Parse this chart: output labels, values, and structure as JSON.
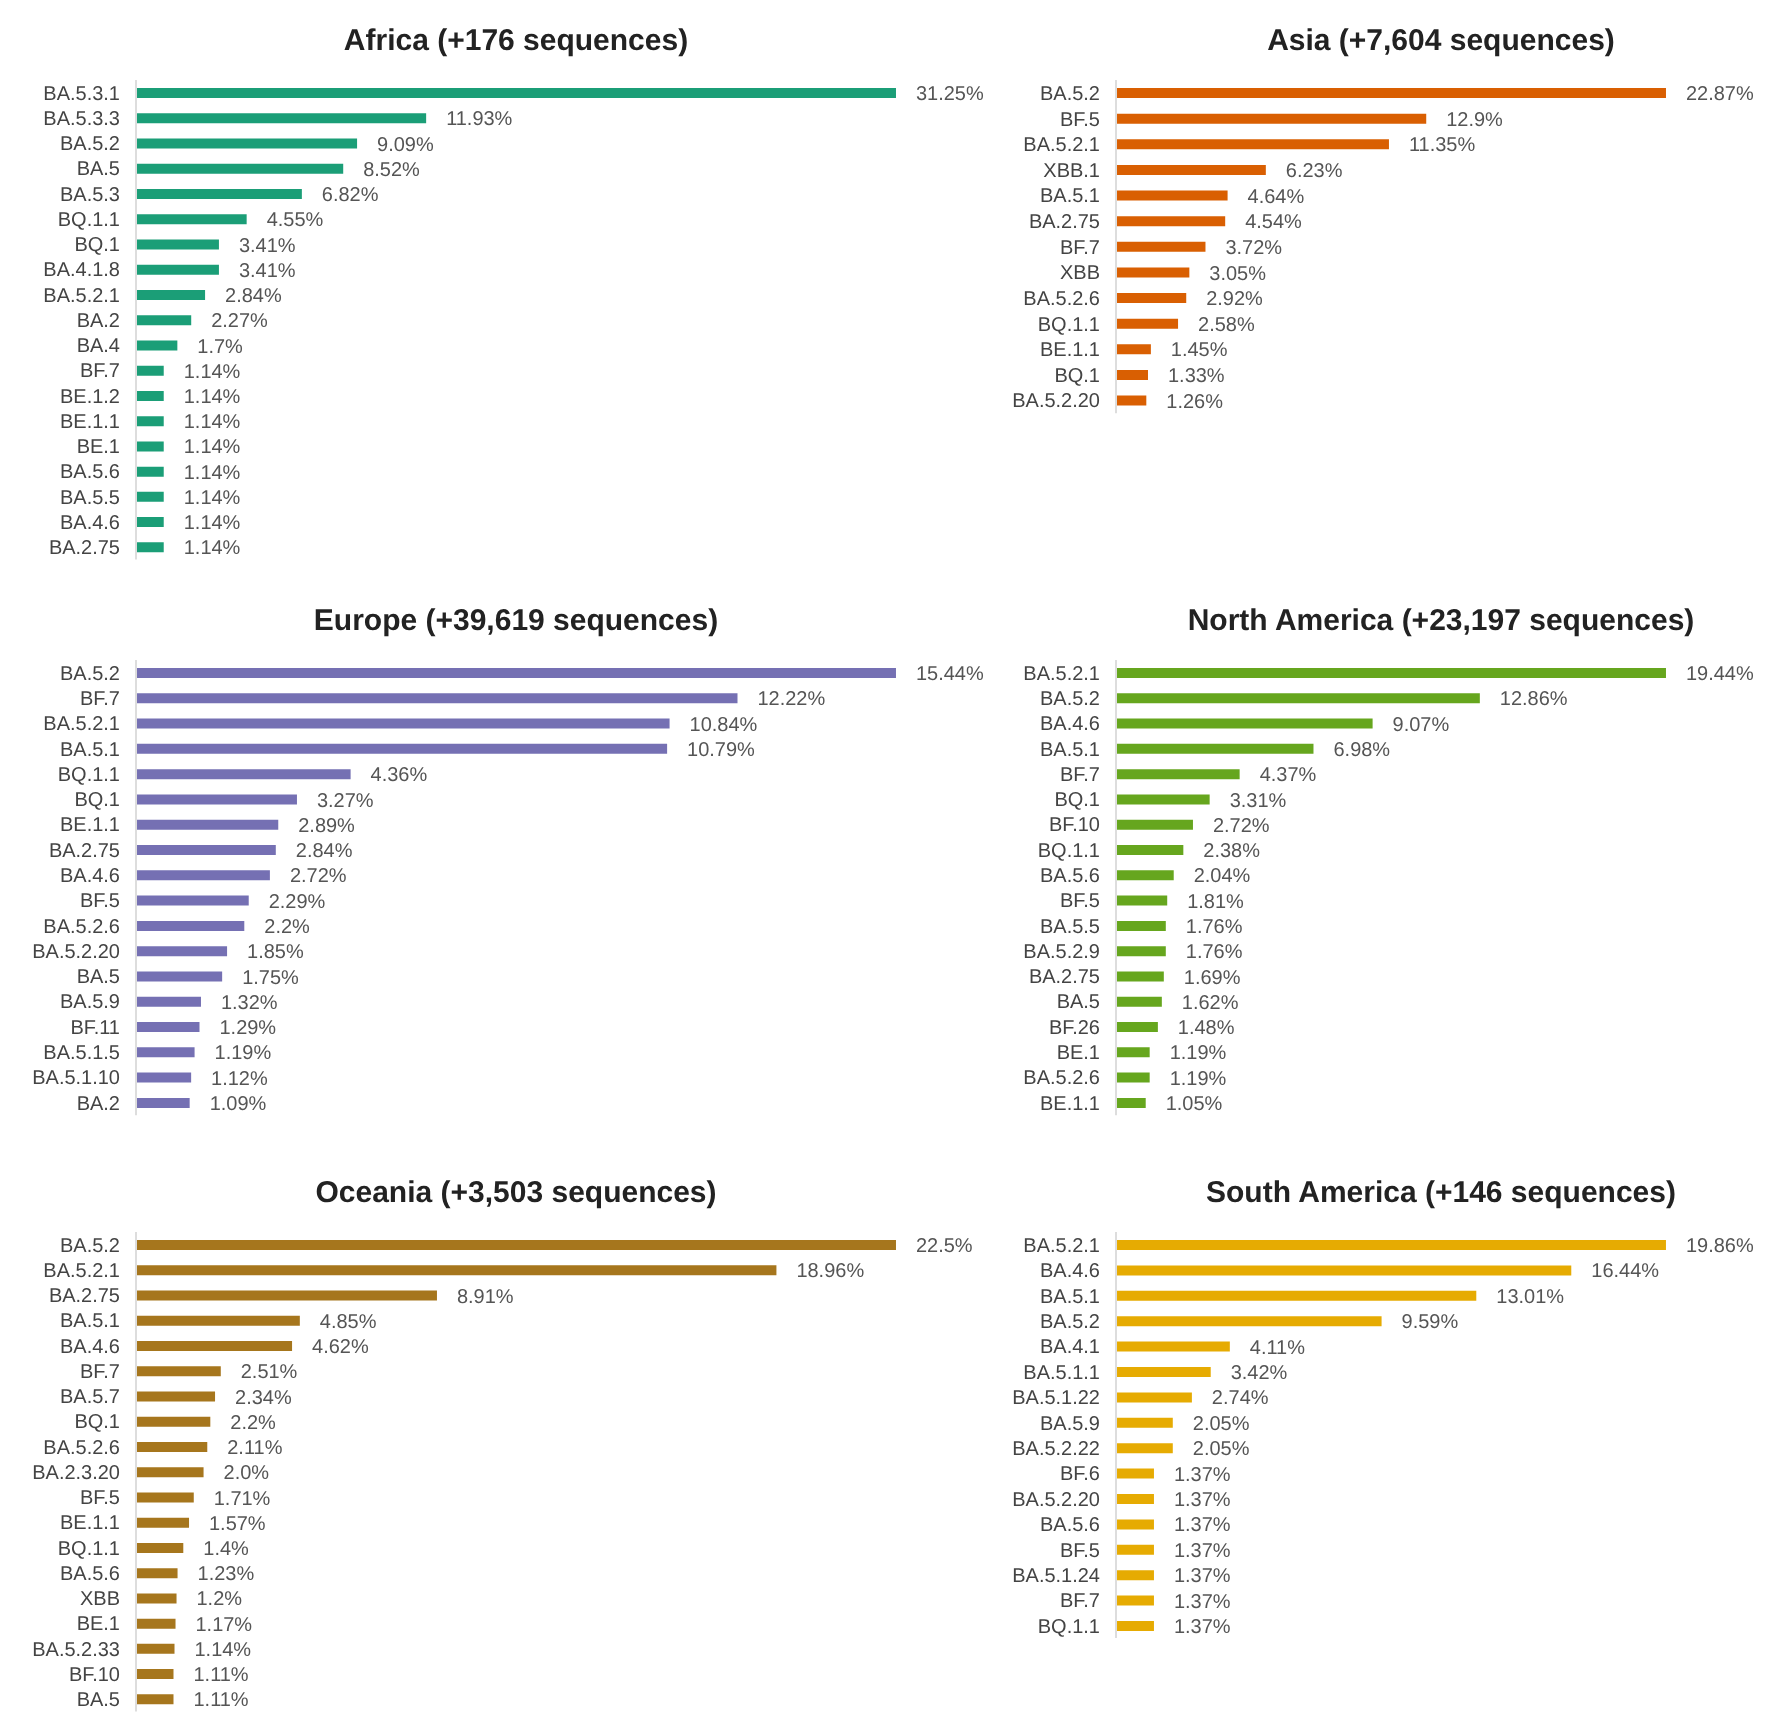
{
  "chart_data": [
    {
      "type": "bar",
      "orientation": "horizontal",
      "title": "Africa (+176 sequences)",
      "categories": [
        "BA.5.3.1",
        "BA.5.3.3",
        "BA.5.2",
        "BA.5",
        "BA.5.3",
        "BQ.1.1",
        "BQ.1",
        "BA.4.1.8",
        "BA.5.2.1",
        "BA.2",
        "BA.4",
        "BF.7",
        "BE.1.2",
        "BE.1.1",
        "BE.1",
        "BA.5.6",
        "BA.5.5",
        "BA.4.6",
        "BA.2.75"
      ],
      "color": "#1b9e77",
      "values": [
        31.25,
        11.93,
        9.09,
        8.52,
        6.82,
        4.55,
        3.41,
        3.41,
        2.84,
        2.27,
        1.7,
        1.14,
        1.14,
        1.14,
        1.14,
        1.14,
        1.14,
        1.14,
        1.14
      ],
      "value_labels": [
        "31.25%",
        "11.93%",
        "9.09%",
        "8.52%",
        "6.82%",
        "4.55%",
        "3.41%",
        "3.41%",
        "2.84%",
        "2.27%",
        "1.7%",
        "1.14%",
        "1.14%",
        "1.14%",
        "1.14%",
        "1.14%",
        "1.14%",
        "1.14%",
        "1.14%"
      ]
    },
    {
      "type": "bar",
      "orientation": "horizontal",
      "title": "Asia (+7,604 sequences)",
      "categories": [
        "BA.5.2",
        "BF.5",
        "BA.5.2.1",
        "XBB.1",
        "BA.5.1",
        "BA.2.75",
        "BF.7",
        "XBB",
        "BA.5.2.6",
        "BQ.1.1",
        "BE.1.1",
        "BQ.1",
        "BA.5.2.20"
      ],
      "color": "#d95f02",
      "values": [
        22.87,
        12.9,
        11.35,
        6.23,
        4.64,
        4.54,
        3.72,
        3.05,
        2.92,
        2.58,
        1.45,
        1.33,
        1.26
      ],
      "value_labels": [
        "22.87%",
        "12.9%",
        "11.35%",
        "6.23%",
        "4.64%",
        "4.54%",
        "3.72%",
        "3.05%",
        "2.92%",
        "2.58%",
        "1.45%",
        "1.33%",
        "1.26%"
      ]
    },
    {
      "type": "bar",
      "orientation": "horizontal",
      "title": "Europe (+39,619 sequences)",
      "categories": [
        "BA.5.2",
        "BF.7",
        "BA.5.2.1",
        "BA.5.1",
        "BQ.1.1",
        "BQ.1",
        "BE.1.1",
        "BA.2.75",
        "BA.4.6",
        "BF.5",
        "BA.5.2.6",
        "BA.5.2.20",
        "BA.5",
        "BA.5.9",
        "BF.11",
        "BA.5.1.5",
        "BA.5.1.10",
        "BA.2"
      ],
      "color": "#7570b3",
      "values": [
        15.44,
        12.22,
        10.84,
        10.79,
        4.36,
        3.27,
        2.89,
        2.84,
        2.72,
        2.29,
        2.2,
        1.85,
        1.75,
        1.32,
        1.29,
        1.19,
        1.12,
        1.09
      ],
      "value_labels": [
        "15.44%",
        "12.22%",
        "10.84%",
        "10.79%",
        "4.36%",
        "3.27%",
        "2.89%",
        "2.84%",
        "2.72%",
        "2.29%",
        "2.2%",
        "1.85%",
        "1.75%",
        "1.32%",
        "1.29%",
        "1.19%",
        "1.12%",
        "1.09%"
      ]
    },
    {
      "type": "bar",
      "orientation": "horizontal",
      "title": "North America (+23,197 sequences)",
      "categories": [
        "BA.5.2.1",
        "BA.5.2",
        "BA.4.6",
        "BA.5.1",
        "BF.7",
        "BQ.1",
        "BF.10",
        "BQ.1.1",
        "BA.5.6",
        "BF.5",
        "BA.5.5",
        "BA.5.2.9",
        "BA.2.75",
        "BA.5",
        "BF.26",
        "BE.1",
        "BA.5.2.6",
        "BE.1.1"
      ],
      "color": "#66a61e",
      "values": [
        19.44,
        12.86,
        9.07,
        6.98,
        4.37,
        3.31,
        2.72,
        2.38,
        2.04,
        1.81,
        1.76,
        1.76,
        1.69,
        1.62,
        1.48,
        1.19,
        1.19,
        1.05
      ],
      "value_labels": [
        "19.44%",
        "12.86%",
        "9.07%",
        "6.98%",
        "4.37%",
        "3.31%",
        "2.72%",
        "2.38%",
        "2.04%",
        "1.81%",
        "1.76%",
        "1.76%",
        "1.69%",
        "1.62%",
        "1.48%",
        "1.19%",
        "1.19%",
        "1.05%"
      ]
    },
    {
      "type": "bar",
      "orientation": "horizontal",
      "title": "Oceania (+3,503 sequences)",
      "categories": [
        "BA.5.2",
        "BA.5.2.1",
        "BA.2.75",
        "BA.5.1",
        "BA.4.6",
        "BF.7",
        "BA.5.7",
        "BQ.1",
        "BA.5.2.6",
        "BA.2.3.20",
        "BF.5",
        "BE.1.1",
        "BQ.1.1",
        "BA.5.6",
        "XBB",
        "BE.1",
        "BA.5.2.33",
        "BF.10",
        "BA.5"
      ],
      "color": "#a6761d",
      "values": [
        22.5,
        18.96,
        8.91,
        4.85,
        4.62,
        2.51,
        2.34,
        2.2,
        2.11,
        2.0,
        1.71,
        1.57,
        1.4,
        1.23,
        1.2,
        1.17,
        1.14,
        1.11,
        1.11
      ],
      "value_labels": [
        "22.5%",
        "18.96%",
        "8.91%",
        "4.85%",
        "4.62%",
        "2.51%",
        "2.34%",
        "2.2%",
        "2.11%",
        "2.0%",
        "1.71%",
        "1.57%",
        "1.4%",
        "1.23%",
        "1.2%",
        "1.17%",
        "1.14%",
        "1.11%",
        "1.11%"
      ]
    },
    {
      "type": "bar",
      "orientation": "horizontal",
      "title": "South America (+146 sequences)",
      "categories": [
        "BA.5.2.1",
        "BA.4.6",
        "BA.5.1",
        "BA.5.2",
        "BA.4.1",
        "BA.5.1.1",
        "BA.5.1.22",
        "BA.5.9",
        "BA.5.2.22",
        "BF.6",
        "BA.5.2.20",
        "BA.5.6",
        "BF.5",
        "BA.5.1.24",
        "BF.7",
        "BQ.1.1"
      ],
      "color": "#e6ab02",
      "values": [
        19.86,
        16.44,
        13.01,
        9.59,
        4.11,
        3.42,
        2.74,
        2.05,
        2.05,
        1.37,
        1.37,
        1.37,
        1.37,
        1.37,
        1.37,
        1.37
      ],
      "value_labels": [
        "19.86%",
        "16.44%",
        "13.01%",
        "9.59%",
        "4.11%",
        "3.42%",
        "2.74%",
        "2.05%",
        "2.05%",
        "1.37%",
        "1.37%",
        "1.37%",
        "1.37%",
        "1.37%",
        "1.37%",
        "1.37%"
      ]
    }
  ]
}
